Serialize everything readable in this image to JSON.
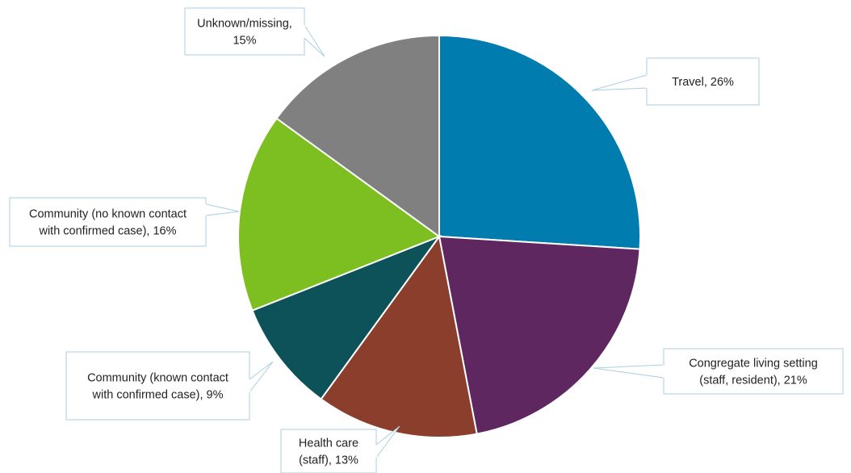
{
  "chart_data": {
    "type": "pie",
    "title": "",
    "start_angle_deg": 0,
    "direction": "clockwise",
    "slices": [
      {
        "label": "Travel",
        "value": 26,
        "display": "Travel, 26%",
        "color": "#007DAE"
      },
      {
        "label": "Congregate living setting (staff, resident)",
        "value": 21,
        "display": "Congregate living setting|(staff, resident), 21%",
        "color": "#5E2760"
      },
      {
        "label": "Health care (staff)",
        "value": 13,
        "display": "Health care|(staff), 13%",
        "color": "#8B3E2C"
      },
      {
        "label": "Community (known contact with confirmed case)",
        "value": 9,
        "display": "Community (known contact|with confirmed case), 9%",
        "color": "#0D5259"
      },
      {
        "label": "Community (no known contact with confirmed case)",
        "value": 16,
        "display": "Community (no known contact|with confirmed case), 16%",
        "color": "#7DBF21"
      },
      {
        "label": "Unknown/missing",
        "value": 15,
        "display": "Unknown/missing,|15%",
        "color": "#808080"
      }
    ]
  }
}
